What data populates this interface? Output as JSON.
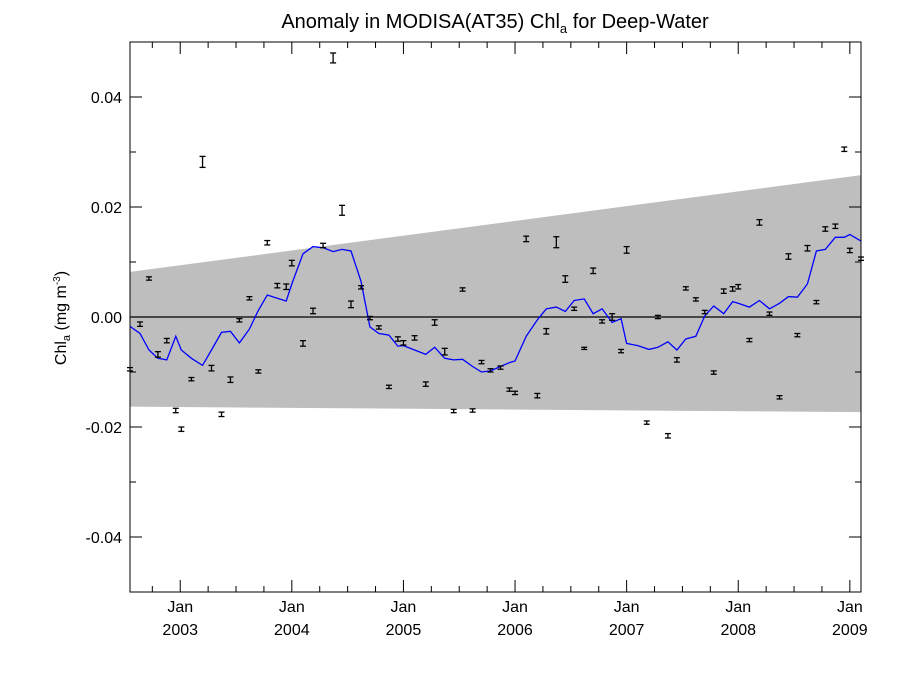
{
  "chart_data": {
    "type": "line",
    "title": {
      "prefix": "Anomaly in MODISA(AT35) Chl",
      "sub": "a",
      "suffix": " for Deep-Water"
    },
    "ylabel": {
      "base": "Chl",
      "sub": "a",
      "units_pre": " (mg m",
      "units_sup": "-3",
      "units_post": ")"
    },
    "xlim": [
      2002.55,
      2009.1
    ],
    "ylim": [
      -0.05,
      0.05
    ],
    "y_ticks": [
      -0.04,
      -0.02,
      0.0,
      0.02,
      0.04
    ],
    "y_tick_labels": [
      "-0.04",
      "-0.02",
      "0.00",
      "0.02",
      "0.04"
    ],
    "x_ticks": [
      {
        "x": 2003,
        "month": "Jan",
        "year": "2003"
      },
      {
        "x": 2004,
        "month": "Jan",
        "year": "2004"
      },
      {
        "x": 2005,
        "month": "Jan",
        "year": "2005"
      },
      {
        "x": 2006,
        "month": "Jan",
        "year": "2006"
      },
      {
        "x": 2007,
        "month": "Jan",
        "year": "2007"
      },
      {
        "x": 2008,
        "month": "Jan",
        "year": "2008"
      },
      {
        "x": 2009,
        "month": "Jan",
        "year": "2009"
      }
    ],
    "zero_line": 0.0,
    "band": {
      "color": "#bebebe",
      "x": [
        2002.55,
        2009.1
      ],
      "upper": [
        0.0082,
        0.0258
      ],
      "lower": [
        -0.0163,
        -0.0173
      ]
    },
    "series": [
      {
        "type": "errorbar",
        "color": "#000000",
        "points": [
          {
            "x": 2002.55,
            "y": -0.0095,
            "err": 0.0003
          },
          {
            "x": 2002.64,
            "y": -0.0013,
            "err": 0.0004
          },
          {
            "x": 2002.72,
            "y": 0.007,
            "err": 0.0003
          },
          {
            "x": 2002.8,
            "y": -0.0068,
            "err": 0.0005
          },
          {
            "x": 2002.88,
            "y": -0.0043,
            "err": 0.0004
          },
          {
            "x": 2002.96,
            "y": -0.017,
            "err": 0.0004
          },
          {
            "x": 2003.01,
            "y": -0.0204,
            "err": 0.0004
          },
          {
            "x": 2003.1,
            "y": -0.0113,
            "err": 0.0003
          },
          {
            "x": 2003.2,
            "y": 0.0282,
            "err": 0.001
          },
          {
            "x": 2003.28,
            "y": -0.0093,
            "err": 0.0005
          },
          {
            "x": 2003.37,
            "y": -0.0177,
            "err": 0.0004
          },
          {
            "x": 2003.45,
            "y": -0.0114,
            "err": 0.0005
          },
          {
            "x": 2003.53,
            "y": -0.0006,
            "err": 0.0003
          },
          {
            "x": 2003.62,
            "y": 0.0034,
            "err": 0.0003
          },
          {
            "x": 2003.7,
            "y": -0.0099,
            "err": 0.0003
          },
          {
            "x": 2003.78,
            "y": 0.0135,
            "err": 0.0004
          },
          {
            "x": 2003.87,
            "y": 0.0057,
            "err": 0.0004
          },
          {
            "x": 2003.95,
            "y": 0.0055,
            "err": 0.0005
          },
          {
            "x": 2004.0,
            "y": 0.0098,
            "err": 0.0005
          },
          {
            "x": 2004.1,
            "y": -0.0048,
            "err": 0.0005
          },
          {
            "x": 2004.19,
            "y": 0.0011,
            "err": 0.0005
          },
          {
            "x": 2004.28,
            "y": 0.013,
            "err": 0.0004
          },
          {
            "x": 2004.37,
            "y": 0.0471,
            "err": 0.0009
          },
          {
            "x": 2004.45,
            "y": 0.0194,
            "err": 0.0009
          },
          {
            "x": 2004.53,
            "y": 0.0023,
            "err": 0.0006
          },
          {
            "x": 2004.62,
            "y": 0.0054,
            "err": 0.0003
          },
          {
            "x": 2004.7,
            "y": -0.0002,
            "err": 0.0003
          },
          {
            "x": 2004.78,
            "y": -0.0019,
            "err": 0.0003
          },
          {
            "x": 2004.87,
            "y": -0.0127,
            "err": 0.0003
          },
          {
            "x": 2004.95,
            "y": -0.004,
            "err": 0.0004
          },
          {
            "x": 2005.0,
            "y": -0.0047,
            "err": 0.0004
          },
          {
            "x": 2005.1,
            "y": -0.0038,
            "err": 0.0004
          },
          {
            "x": 2005.2,
            "y": -0.0122,
            "err": 0.0004
          },
          {
            "x": 2005.28,
            "y": -0.001,
            "err": 0.0005
          },
          {
            "x": 2005.37,
            "y": -0.0063,
            "err": 0.0006
          },
          {
            "x": 2005.45,
            "y": -0.0171,
            "err": 0.0003
          },
          {
            "x": 2005.53,
            "y": 0.005,
            "err": 0.0003
          },
          {
            "x": 2005.62,
            "y": -0.017,
            "err": 0.0003
          },
          {
            "x": 2005.7,
            "y": -0.0082,
            "err": 0.0003
          },
          {
            "x": 2005.78,
            "y": -0.0097,
            "err": 0.0003
          },
          {
            "x": 2005.87,
            "y": -0.0092,
            "err": 0.0003
          },
          {
            "x": 2005.95,
            "y": -0.0132,
            "err": 0.0003
          },
          {
            "x": 2006.0,
            "y": -0.0138,
            "err": 0.0003
          },
          {
            "x": 2006.1,
            "y": 0.0142,
            "err": 0.0005
          },
          {
            "x": 2006.2,
            "y": -0.0143,
            "err": 0.0004
          },
          {
            "x": 2006.28,
            "y": -0.0026,
            "err": 0.0005
          },
          {
            "x": 2006.37,
            "y": 0.0136,
            "err": 0.001
          },
          {
            "x": 2006.45,
            "y": 0.0069,
            "err": 0.0006
          },
          {
            "x": 2006.53,
            "y": 0.0015,
            "err": 0.0003
          },
          {
            "x": 2006.62,
            "y": -0.0057,
            "err": 0.0002
          },
          {
            "x": 2006.7,
            "y": 0.0084,
            "err": 0.0005
          },
          {
            "x": 2006.78,
            "y": -0.0008,
            "err": 0.0003
          },
          {
            "x": 2006.87,
            "y": -0.0,
            "err": 0.0006
          },
          {
            "x": 2006.95,
            "y": -0.0062,
            "err": 0.0003
          },
          {
            "x": 2007.0,
            "y": 0.0122,
            "err": 0.0006
          },
          {
            "x": 2007.18,
            "y": -0.0192,
            "err": 0.0003
          },
          {
            "x": 2007.28,
            "y": 0.0,
            "err": 0.0003
          },
          {
            "x": 2007.37,
            "y": -0.0216,
            "err": 0.0004
          },
          {
            "x": 2007.45,
            "y": -0.0078,
            "err": 0.0004
          },
          {
            "x": 2007.53,
            "y": 0.0052,
            "err": 0.0003
          },
          {
            "x": 2007.62,
            "y": 0.0032,
            "err": 0.0003
          },
          {
            "x": 2007.7,
            "y": 0.0009,
            "err": 0.0003
          },
          {
            "x": 2007.78,
            "y": -0.0101,
            "err": 0.0003
          },
          {
            "x": 2007.87,
            "y": 0.0047,
            "err": 0.0004
          },
          {
            "x": 2007.95,
            "y": 0.0051,
            "err": 0.0004
          },
          {
            "x": 2008.0,
            "y": 0.0055,
            "err": 0.0004
          },
          {
            "x": 2008.1,
            "y": -0.0042,
            "err": 0.0003
          },
          {
            "x": 2008.19,
            "y": 0.0172,
            "err": 0.0005
          },
          {
            "x": 2008.28,
            "y": 0.0006,
            "err": 0.0003
          },
          {
            "x": 2008.37,
            "y": -0.0146,
            "err": 0.0003
          },
          {
            "x": 2008.45,
            "y": 0.011,
            "err": 0.0005
          },
          {
            "x": 2008.53,
            "y": -0.0033,
            "err": 0.0003
          },
          {
            "x": 2008.62,
            "y": 0.0125,
            "err": 0.0005
          },
          {
            "x": 2008.7,
            "y": 0.0027,
            "err": 0.0003
          },
          {
            "x": 2008.78,
            "y": 0.016,
            "err": 0.0004
          },
          {
            "x": 2008.87,
            "y": 0.0165,
            "err": 0.0004
          },
          {
            "x": 2008.95,
            "y": 0.0305,
            "err": 0.0004
          },
          {
            "x": 2009.0,
            "y": 0.0121,
            "err": 0.0004
          },
          {
            "x": 2009.1,
            "y": 0.0106,
            "err": 0.0003
          }
        ]
      },
      {
        "type": "line",
        "color": "#0000ff",
        "x": [
          2002.55,
          2002.64,
          2002.72,
          2002.8,
          2002.88,
          2002.96,
          2003.01,
          2003.1,
          2003.2,
          2003.28,
          2003.37,
          2003.45,
          2003.53,
          2003.62,
          2003.7,
          2003.78,
          2003.87,
          2003.95,
          2004.0,
          2004.1,
          2004.19,
          2004.28,
          2004.37,
          2004.45,
          2004.53,
          2004.62,
          2004.7,
          2004.78,
          2004.87,
          2004.95,
          2005.0,
          2005.1,
          2005.2,
          2005.28,
          2005.37,
          2005.45,
          2005.53,
          2005.62,
          2005.7,
          2005.78,
          2005.87,
          2005.95,
          2006.0,
          2006.1,
          2006.2,
          2006.28,
          2006.37,
          2006.45,
          2006.53,
          2006.62,
          2006.7,
          2006.78,
          2006.87,
          2006.95,
          2007.0,
          2007.1,
          2007.2,
          2007.28,
          2007.37,
          2007.45,
          2007.53,
          2007.62,
          2007.7,
          2007.78,
          2007.87,
          2007.95,
          2008.0,
          2008.1,
          2008.19,
          2008.28,
          2008.37,
          2008.45,
          2008.53,
          2008.62,
          2008.7,
          2008.78,
          2008.87,
          2008.95,
          2009.0,
          2009.1
        ],
        "y": [
          -0.0017,
          -0.003,
          -0.006,
          -0.0075,
          -0.0078,
          -0.0035,
          -0.006,
          -0.0075,
          -0.0088,
          -0.006,
          -0.0028,
          -0.0026,
          -0.0047,
          -0.0022,
          0.0012,
          0.004,
          0.0034,
          0.0029,
          0.006,
          0.0115,
          0.0128,
          0.0126,
          0.0119,
          0.0123,
          0.012,
          0.0065,
          -0.0018,
          -0.003,
          -0.0033,
          -0.0053,
          -0.0052,
          -0.006,
          -0.0068,
          -0.0055,
          -0.0075,
          -0.0078,
          -0.0077,
          -0.009,
          -0.01,
          -0.0098,
          -0.009,
          -0.0083,
          -0.008,
          -0.0035,
          -0.0005,
          0.0015,
          0.0018,
          0.001,
          0.003,
          0.0033,
          0.0006,
          0.0015,
          -0.001,
          -0.0003,
          -0.0048,
          -0.0052,
          -0.0059,
          -0.0055,
          -0.0045,
          -0.006,
          -0.004,
          -0.0035,
          0.0002,
          0.002,
          0.0006,
          0.0028,
          0.0025,
          0.0018,
          0.003,
          0.0015,
          0.0025,
          0.0037,
          0.0036,
          0.006,
          0.012,
          0.0123,
          0.0145,
          0.0145,
          0.015,
          0.0138
        ]
      }
    ]
  }
}
